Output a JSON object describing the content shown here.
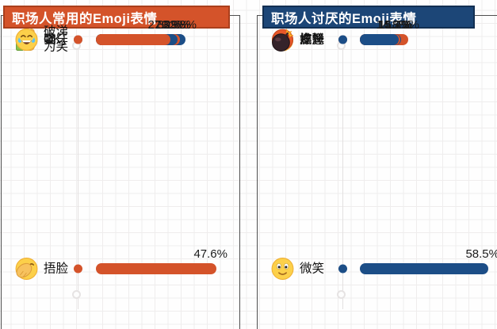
{
  "chart_data": [
    {
      "type": "bar",
      "orientation": "horizontal",
      "title": "职场人常用的Emoji表情",
      "categories": [
        "捂脸",
        "OK",
        "强",
        "呲牙",
        "破涕为笑"
      ],
      "values": [
        47.6,
        32.8,
        30.6,
        29.9,
        27.2
      ],
      "value_labels": [
        "47.6%",
        "32.8%",
        "30.6%",
        "29.9%",
        "27.2%"
      ],
      "icons": [
        "facepalm-emoji",
        "ok-hand-emoji",
        "thumbs-up-emoji",
        "grin-teeth-emoji",
        "laugh-tears-emoji"
      ],
      "bar_colors": [
        "#d4532a",
        "#1c4e87",
        "#d4532a",
        "#1c4e87",
        "#d4532a"
      ],
      "dot_colors": [
        "#d4532a",
        "#dcdcdc",
        "#1c4e87",
        "#dcdcdc",
        "#d4532a"
      ],
      "header_bg": "#d4532a",
      "header_border": "#aa3f1c",
      "xlim": [
        0,
        50
      ],
      "grid": true,
      "legend": "none"
    },
    {
      "type": "bar",
      "orientation": "horizontal",
      "title": "职场人讨厌的Emoji表情",
      "categories": [
        "微笑",
        "尴尬",
        "擦汗",
        "发怒",
        "炸弹"
      ],
      "values": [
        58.5,
        18.3,
        15.4,
        15.2,
        14.5
      ],
      "value_labels": [
        "58.5%",
        "18.3%",
        "15.4%",
        "15.2%",
        "14.5%"
      ],
      "icons": [
        "smile-emoji",
        "awkward-emoji",
        "wipe-sweat-emoji",
        "angry-emoji",
        "bomb-emoji"
      ],
      "bar_colors": [
        "#1c4e87",
        "#d4532a",
        "#1c4e87",
        "#d4532a",
        "#1c4e87"
      ],
      "dot_colors": [
        "#1c4e87",
        "#dcdcdc",
        "#d4532a",
        "#dcdcdc",
        "#1c4e87"
      ],
      "header_bg": "#1c4677",
      "header_border": "#122f52",
      "xlim": [
        0,
        60
      ],
      "grid": true,
      "legend": "none"
    }
  ],
  "theme": {
    "orange": "#d4532a",
    "blue": "#1c4e87",
    "neutral_dot": "#dcdcdc",
    "text": "#1a1a1a",
    "grid_line": "#efeded"
  }
}
